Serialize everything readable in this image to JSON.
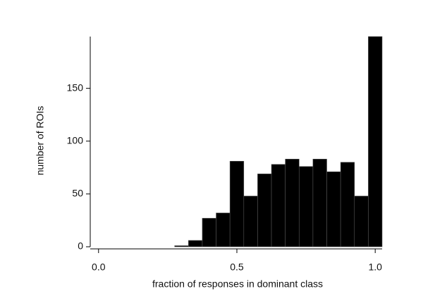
{
  "chart_data": {
    "type": "histogram",
    "x_label": "fraction of responses in dominant class",
    "y_label": "number of ROIs",
    "bins": [
      -0.025,
      0.025,
      0.075,
      0.125,
      0.175,
      0.225,
      0.275,
      0.325,
      0.375,
      0.425,
      0.475,
      0.525,
      0.575,
      0.625,
      0.675,
      0.725,
      0.775,
      0.825,
      0.875,
      0.925,
      0.975,
      1.025
    ],
    "values": [
      0,
      0,
      0,
      0,
      0,
      0,
      1,
      6,
      27,
      32,
      81,
      48,
      69,
      78,
      83,
      76,
      83,
      71,
      80,
      48,
      199
    ],
    "color": "#000000",
    "xlim": [
      -0.03,
      1.025
    ],
    "ylim": [
      0,
      199
    ],
    "xticks": [
      {
        "value": 0,
        "label": "0.0"
      },
      0.5,
      {
        "value": 1,
        "label": "1.0"
      }
    ],
    "yticks": [
      0,
      50,
      100,
      150
    ]
  }
}
